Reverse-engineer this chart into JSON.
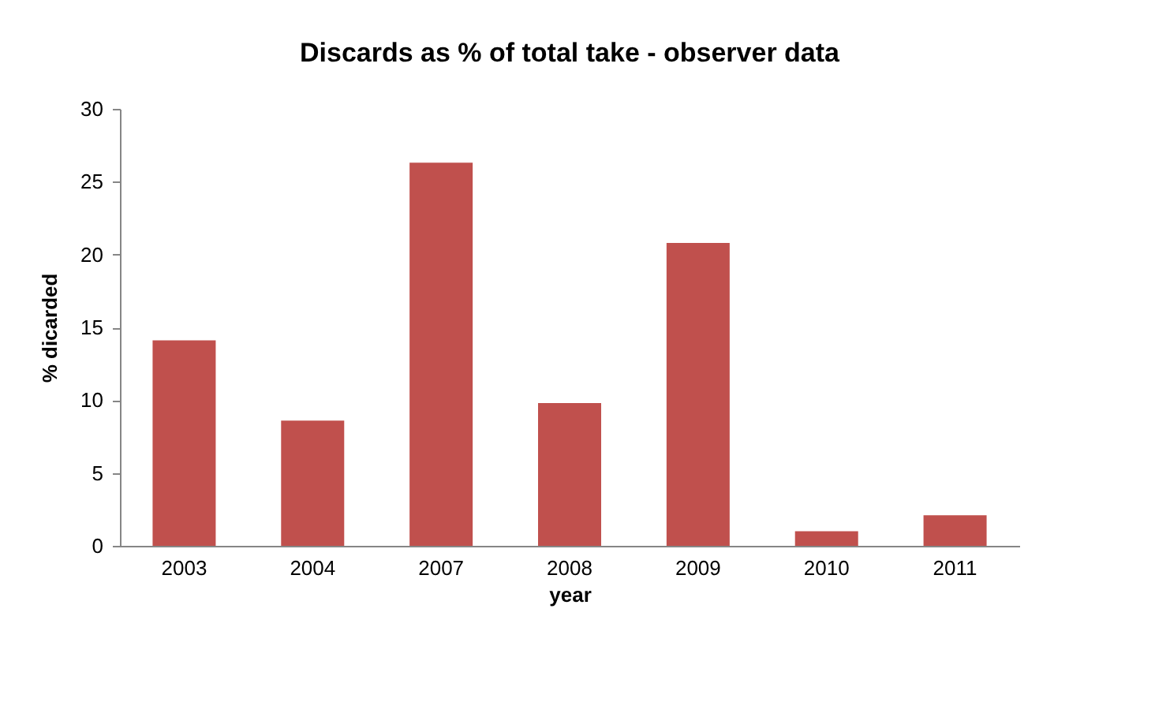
{
  "chart_data": {
    "type": "bar",
    "title": "Discards as % of total take - observer data",
    "xlabel": "year",
    "ylabel": "% dicarded",
    "categories": [
      "2003",
      "2004",
      "2007",
      "2008",
      "2009",
      "2010",
      "2011"
    ],
    "values": [
      14.1,
      8.6,
      26.3,
      9.8,
      20.8,
      1.0,
      2.1
    ],
    "color": "#c0504d",
    "ylim": [
      0,
      30
    ],
    "yticks": [
      0,
      5,
      10,
      15,
      20,
      25,
      30
    ],
    "grid": false
  }
}
